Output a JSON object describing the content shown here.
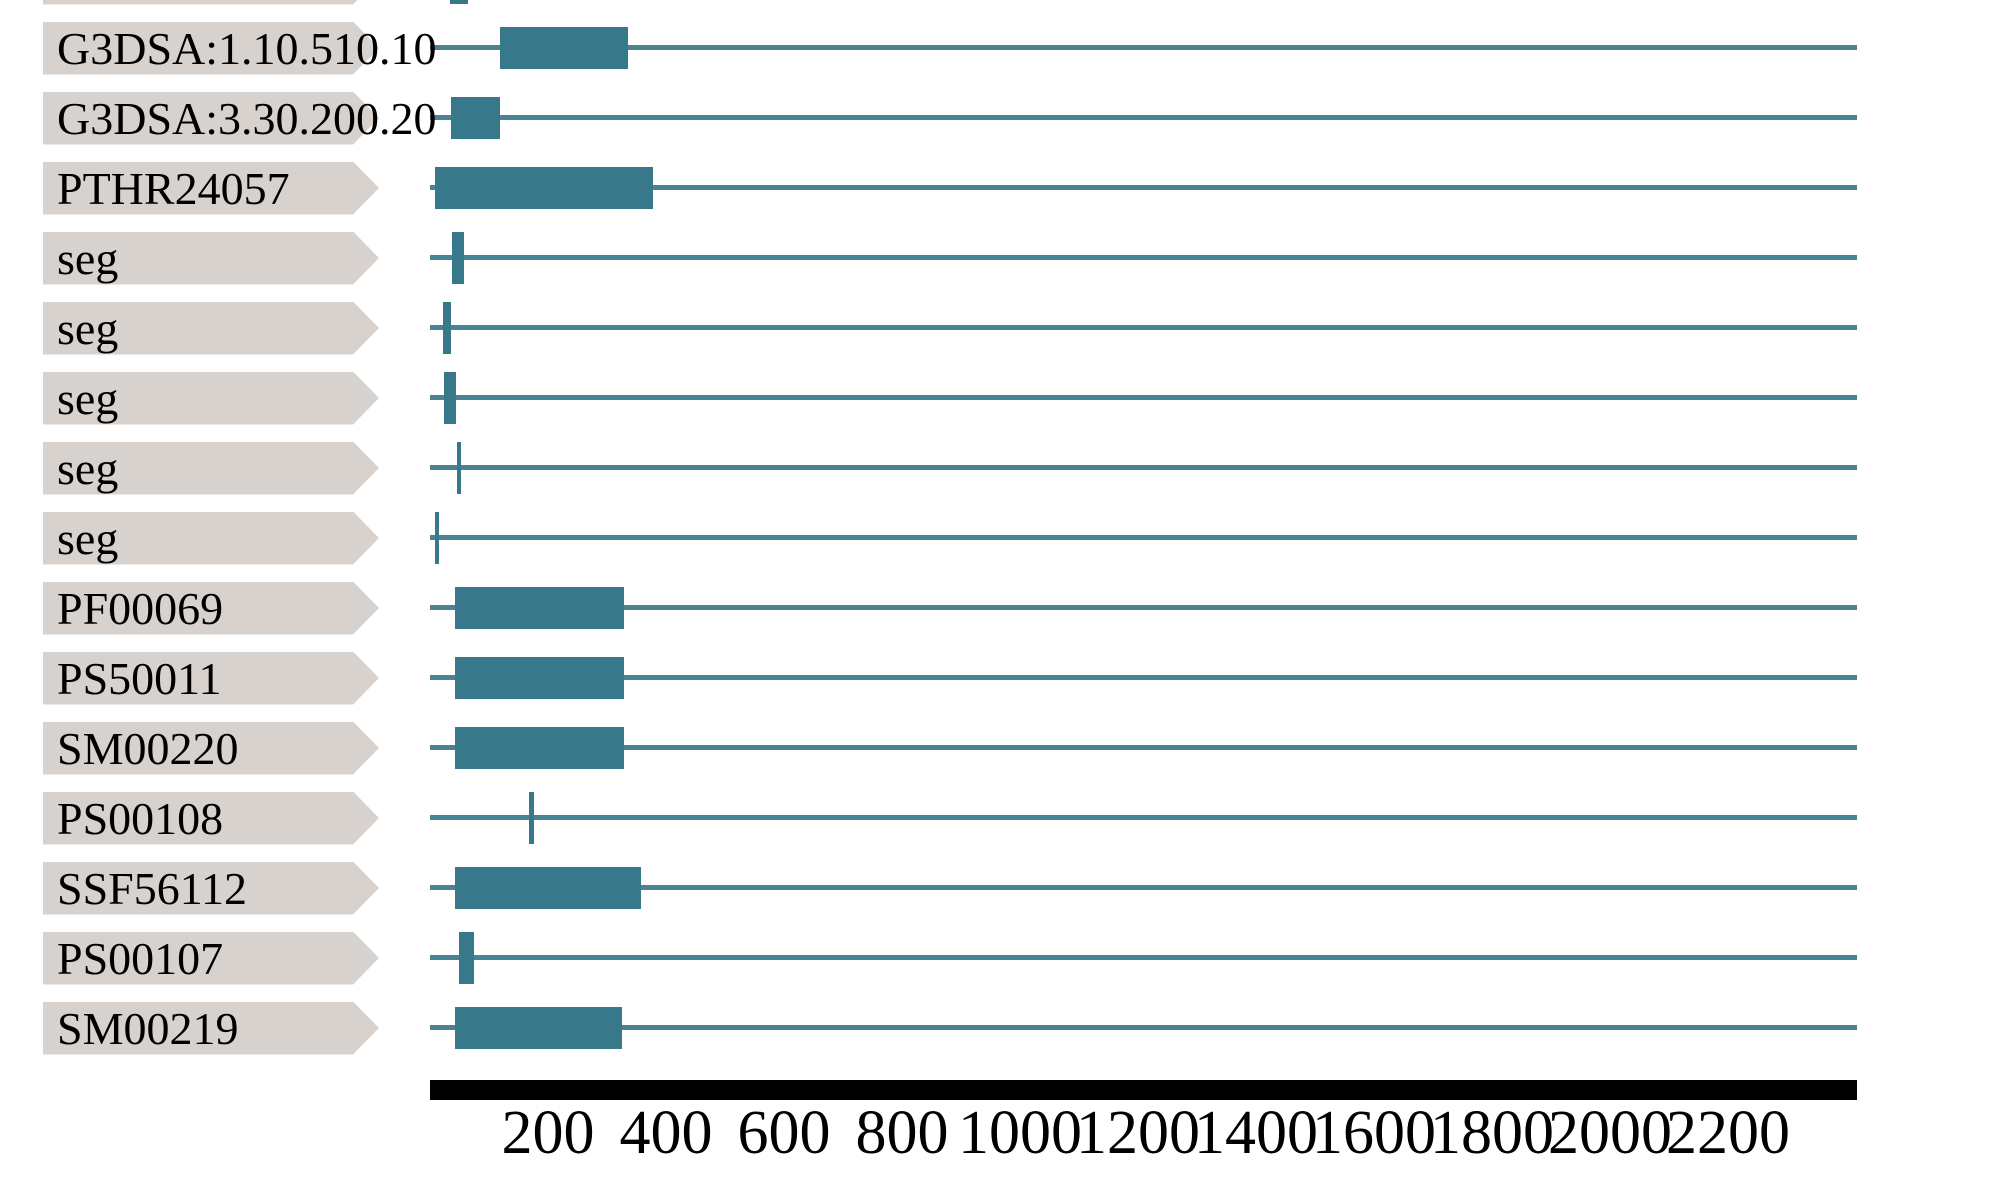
{
  "chart_data": {
    "type": "span",
    "description": "Protein sequence feature/domain architecture tracks (InterProScan-style). Each row shows a signature match drawn on the full-length sequence line.",
    "title": "",
    "xlabel": "",
    "ylabel": "",
    "x_range": [
      0,
      2420
    ],
    "grid": false,
    "colors": {
      "feature_fill": "#37798a",
      "sequence_line": "#4a8494",
      "label_box": "#d8d2ce",
      "axis_bar": "#000000",
      "text": "#000000",
      "background": "#ffffff"
    },
    "axis": {
      "ticks": [
        200,
        400,
        600,
        800,
        1000,
        1200,
        1400,
        1600,
        1800,
        2000,
        2200
      ]
    },
    "rows": [
      {
        "label": "",
        "partial": true,
        "features": [
          {
            "type": "tick",
            "start": 34,
            "end": 64
          }
        ]
      },
      {
        "label": "G3DSA:1.10.510.10",
        "partial": false,
        "features": [
          {
            "type": "box",
            "start": 119,
            "end": 336
          }
        ]
      },
      {
        "label": "G3DSA:3.30.200.20",
        "partial": false,
        "features": [
          {
            "type": "box",
            "start": 35,
            "end": 119
          }
        ]
      },
      {
        "label": "PTHR24057",
        "partial": false,
        "features": [
          {
            "type": "box",
            "start": 8,
            "end": 378
          }
        ]
      },
      {
        "label": "seg",
        "partial": false,
        "features": [
          {
            "type": "tick",
            "start": 37,
            "end": 58
          }
        ]
      },
      {
        "label": "seg",
        "partial": false,
        "features": [
          {
            "type": "tick",
            "start": 22,
            "end": 36
          }
        ]
      },
      {
        "label": "seg",
        "partial": false,
        "features": [
          {
            "type": "tick",
            "start": 24,
            "end": 44
          }
        ]
      },
      {
        "label": "seg",
        "partial": false,
        "features": [
          {
            "type": "tick",
            "start": 46,
            "end": 53
          }
        ]
      },
      {
        "label": "seg",
        "partial": false,
        "features": [
          {
            "type": "tick",
            "start": 8,
            "end": 15
          }
        ]
      },
      {
        "label": "PF00069",
        "partial": false,
        "features": [
          {
            "type": "box",
            "start": 42,
            "end": 329
          }
        ]
      },
      {
        "label": "PS50011",
        "partial": false,
        "features": [
          {
            "type": "box",
            "start": 42,
            "end": 329
          }
        ]
      },
      {
        "label": "SM00220",
        "partial": false,
        "features": [
          {
            "type": "box",
            "start": 42,
            "end": 329
          }
        ]
      },
      {
        "label": "PS00108",
        "partial": false,
        "features": [
          {
            "type": "tick",
            "start": 168,
            "end": 176
          }
        ]
      },
      {
        "label": "SSF56112",
        "partial": false,
        "features": [
          {
            "type": "box",
            "start": 42,
            "end": 358
          }
        ]
      },
      {
        "label": "PS00107",
        "partial": false,
        "features": [
          {
            "type": "tick",
            "start": 49,
            "end": 75
          }
        ]
      },
      {
        "label": "SM00219",
        "partial": false,
        "features": [
          {
            "type": "box",
            "start": 42,
            "end": 325
          }
        ]
      }
    ]
  }
}
